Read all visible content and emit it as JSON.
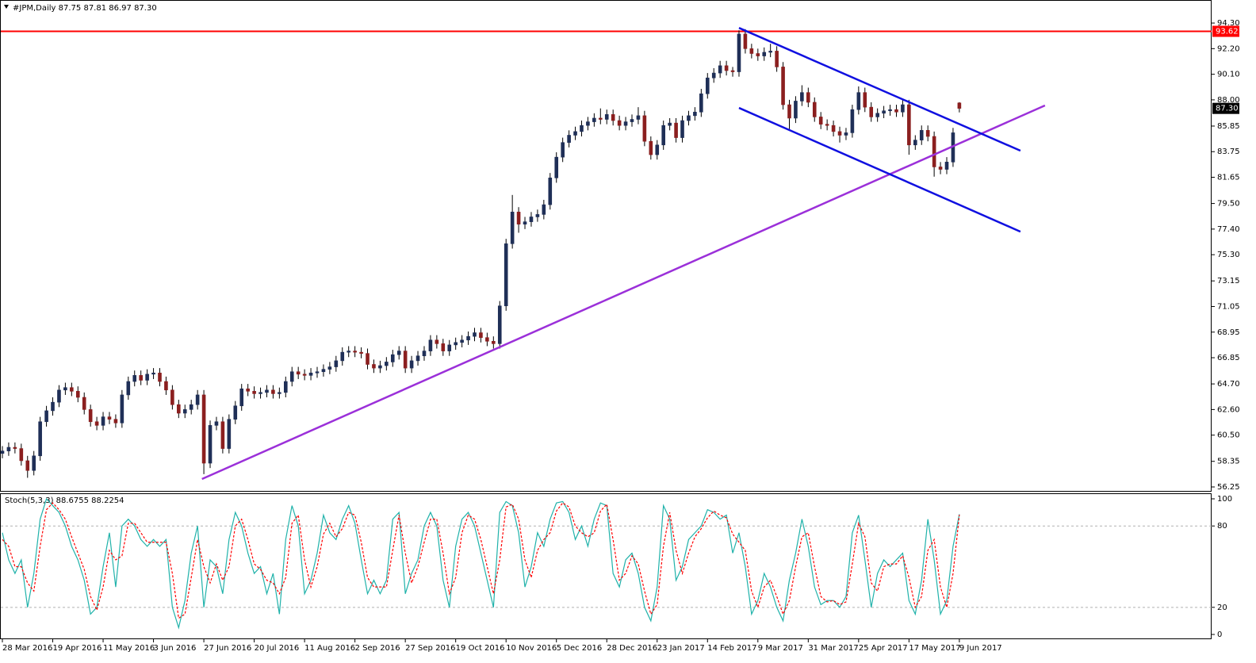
{
  "chart_data": [
    {
      "type": "candlestick",
      "title": "#JPM,Daily  87.75 87.81 86.97 87.30",
      "categories": [
        "28 Mar 2016",
        null,
        null,
        null,
        null,
        null,
        null,
        null,
        "19 Apr 2016",
        null,
        null,
        null,
        null,
        null,
        null,
        null,
        "11 May 2016",
        null,
        null,
        null,
        null,
        null,
        null,
        null,
        "3 Jun 2016",
        null,
        null,
        null,
        null,
        null,
        null,
        null,
        "27 Jun 2016",
        null,
        null,
        null,
        null,
        null,
        null,
        null,
        "20 Jul 2016",
        null,
        null,
        null,
        null,
        null,
        null,
        null,
        "11 Aug 2016",
        null,
        null,
        null,
        null,
        null,
        null,
        null,
        "2 Sep 2016",
        null,
        null,
        null,
        null,
        null,
        null,
        null,
        "27 Sep 2016",
        null,
        null,
        null,
        null,
        null,
        null,
        null,
        "19 Oct 2016",
        null,
        null,
        null,
        null,
        null,
        null,
        null,
        "10 Nov 2016",
        null,
        null,
        null,
        null,
        null,
        null,
        null,
        "5 Dec 2016",
        null,
        null,
        null,
        null,
        null,
        null,
        null,
        "28 Dec 2016",
        null,
        null,
        null,
        null,
        null,
        null,
        null,
        "23 Jan 2017",
        null,
        null,
        null,
        null,
        null,
        null,
        null,
        "14 Feb 2017",
        null,
        null,
        null,
        null,
        null,
        null,
        null,
        "9 Mar 2017",
        null,
        null,
        null,
        null,
        null,
        null,
        null,
        "31 Mar 2017",
        null,
        null,
        null,
        null,
        null,
        null,
        null,
        "25 Apr 2017",
        null,
        null,
        null,
        null,
        null,
        null,
        null,
        "17 May 2017",
        null,
        null,
        null,
        null,
        null,
        null,
        null,
        "9 Jun 2017"
      ],
      "open": [
        59.0,
        59.2,
        59.5,
        59.4,
        58.4,
        57.6,
        58.8,
        61.6,
        62.5,
        63.2,
        64.2,
        64.4,
        64.1,
        63.6,
        62.6,
        61.6,
        61.3,
        62.0,
        61.8,
        61.5,
        63.8,
        64.9,
        65.4,
        65.0,
        65.5,
        65.6,
        64.9,
        64.2,
        63.0,
        62.3,
        62.6,
        63.0,
        63.8,
        58.2,
        61.3,
        61.6,
        59.4,
        61.8,
        62.9,
        64.3,
        64.1,
        63.9,
        64.0,
        64.2,
        63.9,
        64.0,
        64.9,
        65.7,
        65.5,
        65.4,
        65.6,
        65.7,
        65.9,
        66.1,
        66.6,
        67.3,
        67.4,
        67.3,
        67.2,
        66.3,
        66.0,
        66.2,
        66.5,
        67.1,
        67.4,
        66.0,
        66.6,
        67.0,
        67.4,
        68.3,
        68.0,
        67.4,
        67.9,
        68.1,
        68.3,
        68.6,
        68.9,
        68.5,
        68.2,
        68.0,
        71.1,
        76.2,
        78.8,
        77.8,
        78.0,
        78.4,
        78.6,
        79.4,
        81.6,
        83.3,
        84.5,
        85.1,
        85.4,
        85.9,
        86.2,
        86.5,
        86.4,
        86.8,
        86.3,
        85.9,
        86.2,
        86.4,
        86.7,
        84.6,
        83.5,
        84.3,
        85.9,
        86.1,
        84.9,
        86.3,
        86.7,
        87.0,
        88.5,
        89.8,
        90.2,
        90.8,
        90.4,
        90.3,
        93.4,
        92.2,
        91.8,
        91.6,
        91.9,
        92.0,
        90.7,
        87.6,
        86.5,
        87.9,
        88.6,
        87.8,
        86.6,
        86.0,
        85.9,
        85.4,
        85.1,
        85.3,
        87.2,
        88.6,
        87.4,
        86.6,
        86.9,
        87.1,
        87.2,
        87.0,
        87.6,
        84.3,
        84.7,
        85.5,
        85.0,
        82.5,
        82.3,
        82.9,
        87.75
      ],
      "high": [
        59.6,
        59.9,
        59.9,
        59.8,
        58.8,
        59.2,
        62.0,
        62.9,
        63.6,
        64.6,
        64.8,
        64.8,
        64.5,
        64.0,
        63.0,
        62.0,
        62.4,
        62.4,
        62.2,
        64.2,
        65.3,
        65.8,
        65.8,
        65.9,
        66.0,
        66.0,
        65.3,
        64.6,
        63.4,
        63.0,
        63.4,
        64.2,
        64.2,
        61.7,
        62.0,
        62.0,
        62.2,
        63.3,
        64.7,
        64.7,
        64.5,
        64.4,
        64.6,
        64.6,
        64.4,
        65.3,
        66.1,
        66.1,
        65.9,
        66.0,
        66.1,
        66.3,
        66.5,
        67.0,
        67.7,
        67.8,
        67.8,
        67.7,
        67.6,
        66.7,
        66.6,
        66.9,
        67.5,
        67.8,
        67.8,
        67.0,
        67.4,
        67.8,
        68.7,
        68.7,
        68.4,
        68.3,
        68.5,
        68.7,
        69.0,
        69.3,
        69.3,
        68.9,
        68.6,
        71.5,
        76.6,
        80.2,
        79.2,
        78.4,
        78.8,
        79.0,
        79.8,
        82.0,
        83.7,
        84.9,
        85.5,
        85.8,
        86.3,
        86.6,
        86.9,
        87.3,
        87.2,
        87.2,
        86.7,
        86.6,
        86.8,
        87.4,
        87.1,
        85.0,
        84.7,
        86.3,
        86.5,
        86.5,
        86.7,
        87.1,
        87.4,
        88.9,
        90.2,
        90.6,
        91.2,
        91.2,
        90.7,
        93.7,
        93.8,
        92.6,
        92.2,
        92.3,
        92.6,
        92.4,
        91.1,
        88.0,
        88.3,
        89.2,
        89.0,
        88.2,
        87.0,
        86.4,
        86.3,
        85.8,
        85.7,
        87.6,
        89.1,
        89.0,
        87.8,
        87.3,
        87.5,
        87.6,
        87.6,
        88.0,
        88.0,
        85.1,
        85.9,
        85.9,
        85.4,
        82.9,
        83.3,
        85.7,
        87.81
      ],
      "low": [
        58.6,
        58.8,
        59.0,
        58.0,
        57.0,
        57.2,
        58.4,
        61.2,
        62.1,
        62.8,
        63.8,
        63.7,
        63.2,
        62.2,
        61.2,
        60.9,
        60.9,
        61.4,
        61.1,
        61.1,
        63.4,
        64.5,
        64.6,
        64.6,
        65.1,
        64.5,
        63.8,
        62.6,
        61.9,
        61.9,
        62.2,
        62.6,
        57.3,
        57.8,
        60.9,
        59.0,
        59.0,
        61.4,
        62.5,
        63.7,
        63.5,
        63.5,
        63.6,
        63.5,
        63.5,
        63.6,
        64.5,
        65.1,
        65.0,
        65.0,
        65.2,
        65.3,
        65.5,
        65.7,
        66.2,
        66.9,
        66.9,
        66.8,
        65.9,
        65.6,
        65.6,
        65.8,
        66.1,
        66.7,
        65.6,
        65.6,
        66.2,
        66.6,
        67.0,
        67.6,
        67.0,
        67.0,
        67.5,
        67.7,
        67.9,
        68.2,
        68.1,
        67.8,
        67.6,
        67.6,
        70.7,
        75.8,
        77.1,
        77.4,
        77.6,
        78.0,
        78.2,
        79.0,
        81.2,
        82.9,
        84.1,
        84.7,
        85.0,
        85.5,
        85.8,
        86.0,
        86.0,
        85.9,
        85.5,
        85.5,
        85.8,
        86.0,
        84.2,
        83.1,
        83.1,
        83.9,
        85.5,
        84.5,
        84.5,
        85.9,
        86.3,
        86.6,
        88.1,
        89.4,
        89.8,
        90.0,
        89.9,
        89.9,
        91.8,
        91.4,
        91.2,
        91.2,
        91.5,
        90.3,
        87.2,
        85.6,
        86.1,
        87.5,
        87.4,
        86.2,
        85.6,
        85.5,
        85.0,
        84.5,
        84.7,
        84.9,
        86.8,
        87.0,
        86.2,
        86.2,
        86.5,
        86.7,
        86.6,
        86.6,
        83.5,
        83.9,
        84.3,
        84.6,
        81.7,
        81.9,
        81.9,
        82.5,
        86.97
      ],
      "close": [
        59.2,
        59.5,
        59.4,
        58.4,
        57.6,
        58.8,
        61.6,
        62.5,
        63.2,
        64.2,
        64.4,
        64.1,
        63.6,
        62.6,
        61.6,
        61.3,
        62.0,
        61.8,
        61.5,
        63.8,
        64.9,
        65.4,
        65.0,
        65.5,
        65.6,
        64.9,
        64.2,
        63.0,
        62.3,
        62.6,
        63.0,
        63.8,
        58.2,
        61.3,
        61.6,
        59.4,
        61.8,
        62.9,
        64.3,
        64.1,
        63.9,
        64.0,
        64.2,
        63.9,
        64.0,
        64.9,
        65.7,
        65.5,
        65.4,
        65.6,
        65.7,
        65.9,
        66.1,
        66.6,
        67.3,
        67.4,
        67.3,
        67.2,
        66.3,
        66.0,
        66.2,
        66.5,
        67.1,
        67.4,
        66.0,
        66.6,
        67.0,
        67.4,
        68.3,
        68.0,
        67.4,
        67.9,
        68.1,
        68.3,
        68.6,
        68.9,
        68.5,
        68.2,
        68.0,
        71.1,
        76.2,
        78.8,
        77.8,
        78.0,
        78.4,
        78.6,
        79.4,
        81.6,
        83.3,
        84.5,
        85.1,
        85.4,
        85.9,
        86.2,
        86.5,
        86.4,
        86.8,
        86.3,
        85.9,
        86.2,
        86.4,
        86.7,
        84.6,
        83.5,
        84.3,
        85.9,
        86.1,
        84.9,
        86.3,
        86.7,
        87.0,
        88.5,
        89.8,
        90.2,
        90.8,
        90.4,
        90.3,
        93.4,
        92.2,
        91.8,
        91.6,
        91.9,
        92.0,
        90.7,
        87.6,
        86.5,
        87.9,
        88.6,
        87.8,
        86.6,
        86.0,
        85.9,
        85.4,
        85.1,
        85.3,
        87.2,
        88.6,
        87.4,
        86.6,
        86.9,
        87.1,
        87.2,
        87.0,
        87.6,
        84.3,
        84.7,
        85.5,
        85.0,
        82.5,
        82.3,
        82.9,
        85.3,
        87.3
      ],
      "up_color": "#1f2f57",
      "down_color": "#8b1f1f",
      "wick_color": "#000000",
      "ylim": [
        55.86,
        96.19
      ],
      "yticks": [
        {
          "value": 94.3,
          "label": "94.30"
        },
        {
          "value": 92.2,
          "label": "92.20"
        },
        {
          "value": 90.1,
          "label": "90.10"
        },
        {
          "value": 88,
          "label": "88.00"
        },
        {
          "value": 85.85,
          "label": "85.85"
        },
        {
          "value": 83.75,
          "label": "83.75"
        },
        {
          "value": 81.65,
          "label": "81.65"
        },
        {
          "value": 79.5,
          "label": "79.50"
        },
        {
          "value": 77.4,
          "label": "77.40"
        },
        {
          "value": 75.3,
          "label": "75.30"
        },
        {
          "value": 73.15,
          "label": "73.15"
        },
        {
          "value": 71.05,
          "label": "71.05"
        },
        {
          "value": 68.95,
          "label": "68.95"
        },
        {
          "value": 66.85,
          "label": "66.85"
        },
        {
          "value": 64.7,
          "label": "64.70"
        },
        {
          "value": 62.6,
          "label": "62.60"
        },
        {
          "value": 60.5,
          "label": "60.50"
        },
        {
          "value": 58.35,
          "label": "58.35"
        },
        {
          "value": 56.25,
          "label": "56.25"
        }
      ],
      "hline": {
        "value": 93.62,
        "label": "93.62",
        "color": "#ff0000"
      },
      "last_price": {
        "value": 87.3,
        "label": "87.30"
      },
      "lines": [
        {
          "color": "#9b30d9",
          "x": [
            31.7,
            165.6
          ],
          "y": [
            56.9,
            87.54
          ]
        },
        {
          "color": "#1010e0",
          "x": [
            117,
            161.7
          ],
          "y": [
            93.9,
            83.83
          ]
        },
        {
          "color": "#1010e0",
          "x": [
            117,
            161.7
          ],
          "y": [
            87.34,
            77.19
          ]
        }
      ]
    },
    {
      "type": "stochastic",
      "title": "Stoch(5,3,3) 88.6755 88.2254",
      "ylim": [
        -3.5,
        104.1
      ],
      "yticks": [
        100,
        80,
        20,
        0
      ],
      "levels": [
        80,
        20
      ],
      "series": [
        {
          "color": "#20b2aa",
          "values": [
            75,
            55,
            45,
            55,
            20,
            45,
            85,
            100,
            95,
            90,
            80,
            65,
            55,
            40,
            15,
            20,
            50,
            75,
            35,
            80,
            85,
            80,
            70,
            65,
            70,
            65,
            70,
            20,
            5,
            25,
            60,
            80,
            20,
            55,
            50,
            30,
            70,
            90,
            80,
            60,
            45,
            50,
            30,
            45,
            15,
            70,
            95,
            80,
            30,
            40,
            60,
            88,
            75,
            70,
            85,
            95,
            82,
            55,
            30,
            40,
            30,
            40,
            85,
            90,
            30,
            45,
            55,
            80,
            90,
            80,
            40,
            20,
            65,
            85,
            90,
            80,
            60,
            40,
            20,
            90,
            98,
            95,
            75,
            35,
            50,
            75,
            65,
            85,
            97,
            98,
            90,
            70,
            80,
            65,
            85,
            97,
            95,
            45,
            35,
            55,
            60,
            45,
            20,
            10,
            35,
            95,
            85,
            40,
            50,
            70,
            75,
            80,
            92,
            90,
            85,
            88,
            60,
            75,
            50,
            15,
            25,
            45,
            35,
            20,
            10,
            40,
            60,
            85,
            65,
            35,
            22,
            25,
            25,
            20,
            28,
            75,
            88,
            55,
            20,
            45,
            55,
            50,
            55,
            60,
            25,
            15,
            40,
            85,
            55,
            15,
            25,
            65,
            88.6755
          ]
        },
        {
          "color": "#ff0000",
          "dash": true,
          "values": [
            70,
            65,
            50,
            50,
            38,
            32,
            65,
            92,
            97,
            92,
            85,
            72,
            60,
            48,
            28,
            18,
            35,
            62,
            55,
            58,
            82,
            82,
            75,
            68,
            68,
            68,
            68,
            45,
            12,
            15,
            42,
            70,
            50,
            38,
            52,
            40,
            50,
            80,
            85,
            70,
            52,
            48,
            40,
            38,
            30,
            42,
            82,
            88,
            55,
            35,
            50,
            74,
            82,
            72,
            78,
            90,
            88,
            68,
            42,
            35,
            35,
            35,
            62,
            88,
            60,
            38,
            50,
            68,
            85,
            85,
            60,
            30,
            42,
            75,
            88,
            85,
            70,
            50,
            30,
            55,
            94,
            96,
            85,
            55,
            42,
            62,
            70,
            75,
            91,
            97,
            94,
            80,
            75,
            72,
            75,
            91,
            96,
            70,
            40,
            45,
            58,
            52,
            32,
            15,
            22,
            65,
            90,
            62,
            45,
            60,
            72,
            78,
            86,
            91,
            88,
            86,
            74,
            68,
            62,
            32,
            20,
            35,
            40,
            28,
            15,
            25,
            50,
            72,
            75,
            50,
            28,
            24,
            25,
            22,
            24,
            52,
            82,
            72,
            38,
            32,
            50,
            52,
            52,
            58,
            42,
            20,
            28,
            62,
            70,
            35,
            20,
            45,
            88.2254
          ]
        }
      ]
    }
  ]
}
